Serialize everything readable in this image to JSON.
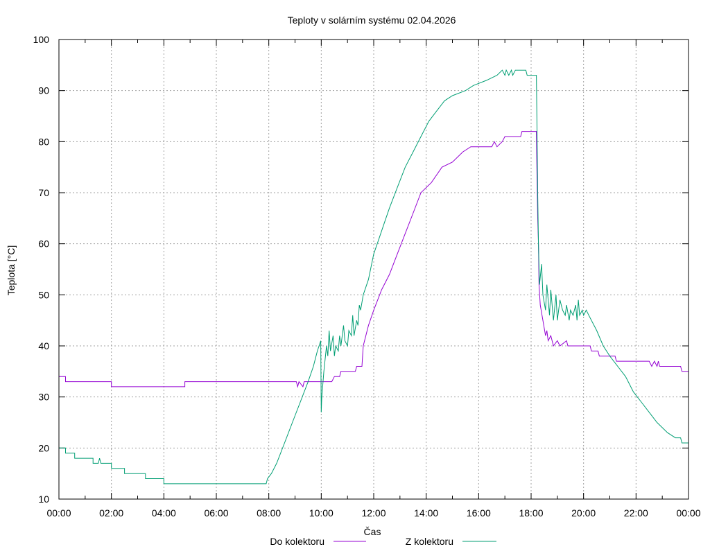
{
  "chart_data": {
    "type": "line",
    "title": "Teploty v solárním systému 02.04.2026",
    "xlabel": "Čas",
    "ylabel": "Teplota [°C]",
    "xlim": [
      "00:00",
      "24:00"
    ],
    "ylim": [
      10,
      100
    ],
    "grid": true,
    "legend_position": "bottom",
    "x_ticks": [
      {
        "t": 0,
        "label": "00:00"
      },
      {
        "t": 2,
        "label": "02:00"
      },
      {
        "t": 4,
        "label": "04:00"
      },
      {
        "t": 6,
        "label": "06:00"
      },
      {
        "t": 8,
        "label": "08:00"
      },
      {
        "t": 10,
        "label": "10:00"
      },
      {
        "t": 12,
        "label": "12:00"
      },
      {
        "t": 14,
        "label": "14:00"
      },
      {
        "t": 16,
        "label": "16:00"
      },
      {
        "t": 18,
        "label": "18:00"
      },
      {
        "t": 20,
        "label": "20:00"
      },
      {
        "t": 22,
        "label": "22:00"
      },
      {
        "t": 24,
        "label": "00:00"
      }
    ],
    "y_ticks": [
      {
        "v": 10,
        "label": "10"
      },
      {
        "v": 20,
        "label": "20"
      },
      {
        "v": 30,
        "label": "30"
      },
      {
        "v": 40,
        "label": "40"
      },
      {
        "v": 50,
        "label": "50"
      },
      {
        "v": 60,
        "label": "60"
      },
      {
        "v": 70,
        "label": "70"
      },
      {
        "v": 80,
        "label": "80"
      },
      {
        "v": 90,
        "label": "90"
      },
      {
        "v": 100,
        "label": "100"
      }
    ],
    "series": [
      {
        "name": "Do kolektoru",
        "color": "#9400d3",
        "points": [
          [
            0.0,
            34
          ],
          [
            0.25,
            34
          ],
          [
            0.25,
            33
          ],
          [
            2.0,
            33
          ],
          [
            2.0,
            32
          ],
          [
            4.8,
            32
          ],
          [
            4.8,
            33
          ],
          [
            9.05,
            33
          ],
          [
            9.1,
            32
          ],
          [
            9.15,
            33
          ],
          [
            9.3,
            32
          ],
          [
            9.35,
            33
          ],
          [
            9.9,
            33
          ],
          [
            10.4,
            33
          ],
          [
            10.5,
            34
          ],
          [
            10.7,
            34
          ],
          [
            10.75,
            35
          ],
          [
            11.3,
            35
          ],
          [
            11.35,
            36
          ],
          [
            11.55,
            36
          ],
          [
            11.6,
            40
          ],
          [
            11.8,
            44
          ],
          [
            12.0,
            47
          ],
          [
            12.3,
            51
          ],
          [
            12.6,
            54
          ],
          [
            12.9,
            58
          ],
          [
            13.2,
            62
          ],
          [
            13.5,
            66
          ],
          [
            13.8,
            70
          ],
          [
            14.2,
            72
          ],
          [
            14.6,
            75
          ],
          [
            15.0,
            76
          ],
          [
            15.4,
            78
          ],
          [
            15.7,
            79
          ],
          [
            16.5,
            79
          ],
          [
            16.6,
            80
          ],
          [
            16.7,
            79
          ],
          [
            16.9,
            80
          ],
          [
            17.0,
            81
          ],
          [
            17.6,
            81
          ],
          [
            17.65,
            82
          ],
          [
            18.2,
            82
          ],
          [
            18.22,
            75
          ],
          [
            18.25,
            65
          ],
          [
            18.28,
            60
          ],
          [
            18.3,
            52
          ],
          [
            18.35,
            48
          ],
          [
            18.45,
            45
          ],
          [
            18.55,
            42
          ],
          [
            18.6,
            43
          ],
          [
            18.65,
            41
          ],
          [
            18.75,
            42
          ],
          [
            18.85,
            40
          ],
          [
            19.0,
            41
          ],
          [
            19.1,
            40
          ],
          [
            19.35,
            41
          ],
          [
            19.4,
            40
          ],
          [
            20.25,
            40
          ],
          [
            20.3,
            39
          ],
          [
            20.55,
            39
          ],
          [
            20.6,
            38
          ],
          [
            21.2,
            38
          ],
          [
            21.25,
            37
          ],
          [
            22.5,
            37
          ],
          [
            22.6,
            36
          ],
          [
            22.7,
            37
          ],
          [
            22.8,
            36
          ],
          [
            22.85,
            37
          ],
          [
            22.9,
            36
          ],
          [
            23.7,
            36
          ],
          [
            23.75,
            35
          ],
          [
            24.0,
            35
          ]
        ]
      },
      {
        "name": "Z kolektoru",
        "color": "#009e73",
        "points": [
          [
            0.0,
            20
          ],
          [
            0.25,
            20
          ],
          [
            0.25,
            19
          ],
          [
            0.6,
            19
          ],
          [
            0.6,
            18
          ],
          [
            1.3,
            18
          ],
          [
            1.3,
            17
          ],
          [
            1.5,
            17
          ],
          [
            1.55,
            18
          ],
          [
            1.6,
            17
          ],
          [
            2.0,
            17
          ],
          [
            2.0,
            16
          ],
          [
            2.5,
            16
          ],
          [
            2.5,
            15
          ],
          [
            3.3,
            15
          ],
          [
            3.3,
            14
          ],
          [
            4.0,
            14
          ],
          [
            4.0,
            13
          ],
          [
            7.9,
            13
          ],
          [
            7.95,
            14
          ],
          [
            8.1,
            15
          ],
          [
            8.3,
            17
          ],
          [
            8.6,
            21
          ],
          [
            8.9,
            25
          ],
          [
            9.2,
            29
          ],
          [
            9.5,
            33
          ],
          [
            9.7,
            36
          ],
          [
            9.85,
            39
          ],
          [
            9.98,
            41
          ],
          [
            10.0,
            27
          ],
          [
            10.02,
            30
          ],
          [
            10.1,
            35
          ],
          [
            10.2,
            40
          ],
          [
            10.25,
            38
          ],
          [
            10.3,
            43
          ],
          [
            10.35,
            39
          ],
          [
            10.45,
            42
          ],
          [
            10.5,
            38
          ],
          [
            10.55,
            40
          ],
          [
            10.65,
            39
          ],
          [
            10.7,
            42
          ],
          [
            10.75,
            40
          ],
          [
            10.85,
            44
          ],
          [
            10.9,
            41
          ],
          [
            11.0,
            40
          ],
          [
            11.05,
            43
          ],
          [
            11.15,
            42
          ],
          [
            11.2,
            46
          ],
          [
            11.25,
            42
          ],
          [
            11.35,
            45
          ],
          [
            11.4,
            44
          ],
          [
            11.45,
            48
          ],
          [
            11.5,
            47
          ],
          [
            11.6,
            50
          ],
          [
            11.8,
            53
          ],
          [
            12.0,
            58
          ],
          [
            12.2,
            61
          ],
          [
            12.4,
            64
          ],
          [
            12.6,
            67
          ],
          [
            12.9,
            71
          ],
          [
            13.2,
            75
          ],
          [
            13.5,
            78
          ],
          [
            13.8,
            81
          ],
          [
            14.1,
            84
          ],
          [
            14.4,
            86
          ],
          [
            14.7,
            88
          ],
          [
            15.0,
            89
          ],
          [
            15.5,
            90
          ],
          [
            15.8,
            91
          ],
          [
            16.3,
            92
          ],
          [
            16.7,
            93
          ],
          [
            16.9,
            94
          ],
          [
            17.0,
            93
          ],
          [
            17.05,
            94
          ],
          [
            17.15,
            93
          ],
          [
            17.25,
            94
          ],
          [
            17.3,
            93
          ],
          [
            17.4,
            94
          ],
          [
            17.8,
            94
          ],
          [
            17.85,
            93
          ],
          [
            18.2,
            93
          ],
          [
            18.22,
            85
          ],
          [
            18.25,
            70
          ],
          [
            18.28,
            60
          ],
          [
            18.32,
            52
          ],
          [
            18.4,
            56
          ],
          [
            18.45,
            50
          ],
          [
            18.55,
            47
          ],
          [
            18.6,
            52
          ],
          [
            18.7,
            46
          ],
          [
            18.75,
            51
          ],
          [
            18.85,
            45
          ],
          [
            18.95,
            50
          ],
          [
            19.0,
            45
          ],
          [
            19.1,
            49
          ],
          [
            19.2,
            47
          ],
          [
            19.3,
            46
          ],
          [
            19.35,
            48
          ],
          [
            19.45,
            45
          ],
          [
            19.5,
            47
          ],
          [
            19.6,
            46
          ],
          [
            19.7,
            48
          ],
          [
            19.75,
            45
          ],
          [
            19.8,
            49
          ],
          [
            19.85,
            46
          ],
          [
            19.95,
            47
          ],
          [
            20.0,
            46
          ],
          [
            20.1,
            47
          ],
          [
            20.2,
            46
          ],
          [
            20.3,
            45
          ],
          [
            20.5,
            43
          ],
          [
            20.75,
            40
          ],
          [
            21.0,
            38
          ],
          [
            21.3,
            36
          ],
          [
            21.6,
            34
          ],
          [
            21.9,
            31
          ],
          [
            22.2,
            29
          ],
          [
            22.5,
            27
          ],
          [
            22.8,
            25
          ],
          [
            23.2,
            23
          ],
          [
            23.5,
            22
          ],
          [
            23.7,
            22
          ],
          [
            23.75,
            21
          ],
          [
            24.0,
            21
          ]
        ]
      }
    ]
  }
}
